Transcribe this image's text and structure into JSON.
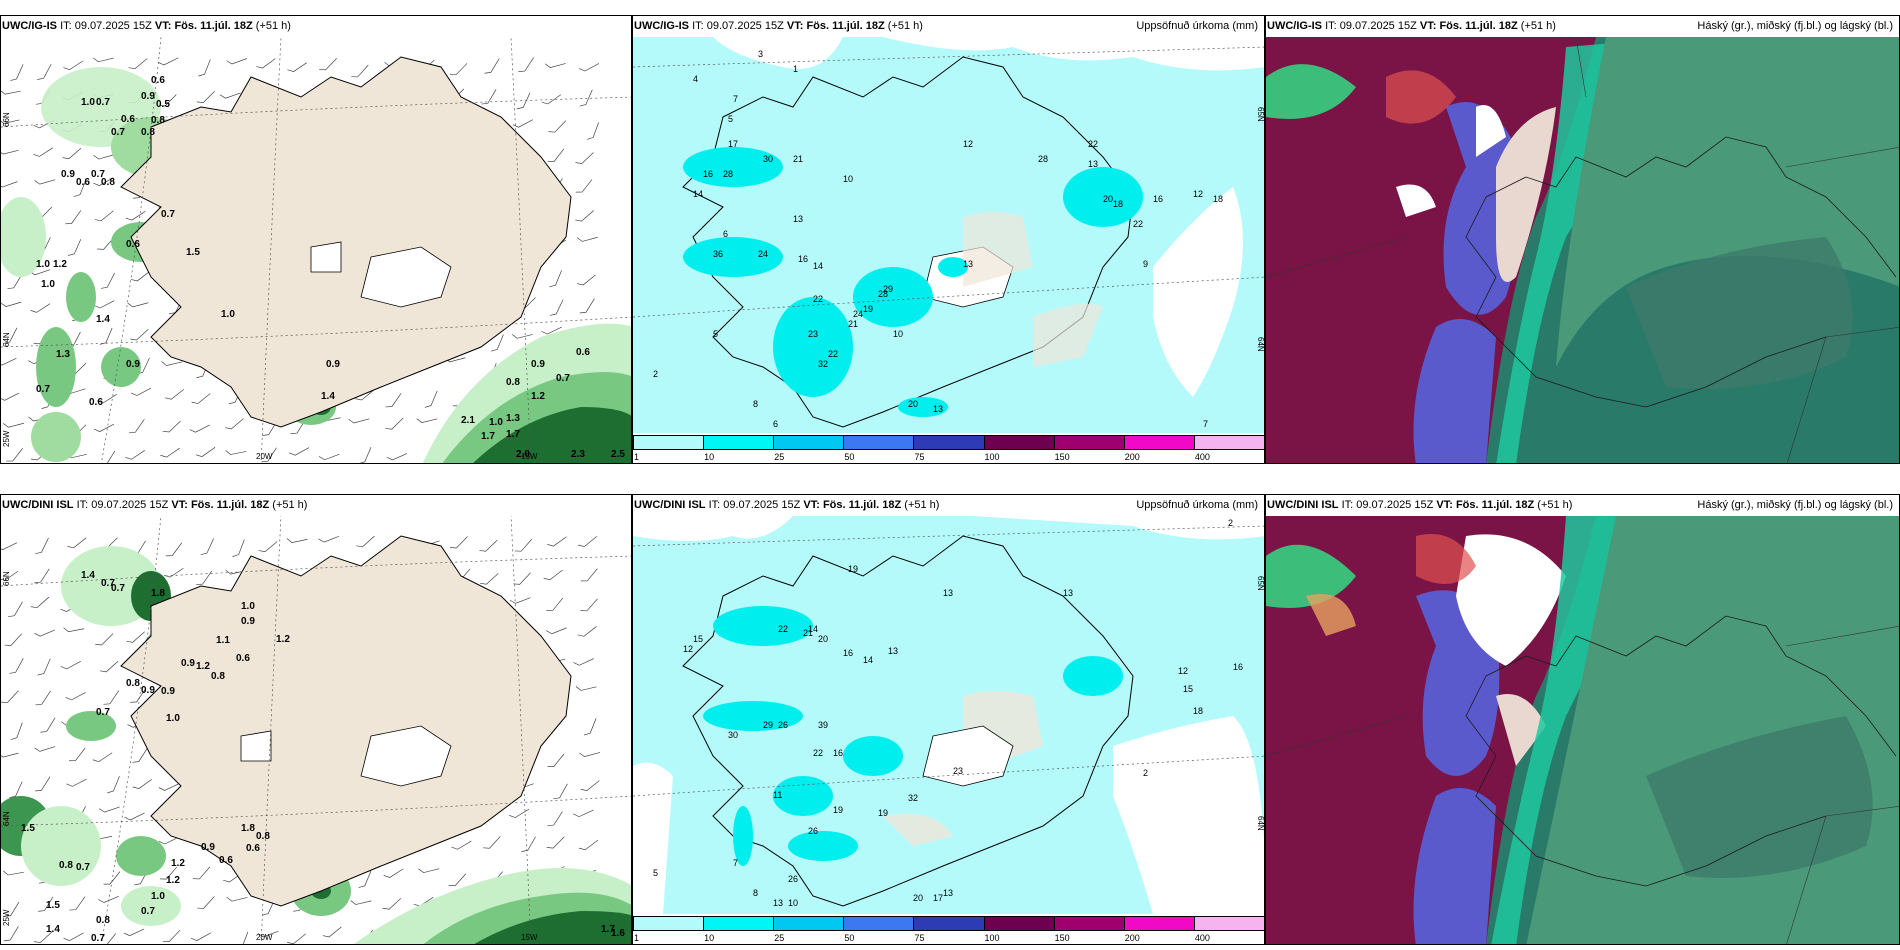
{
  "rows": [
    {
      "model": "UWC/IG-IS",
      "it_prefix": "IT:",
      "it_value": "09.07.2025 15Z",
      "vt_label": "VT:",
      "vt_value": "Fös. 11.júl. 18Z",
      "lead": "(+51 h)",
      "panel_mid_title": "Uppsöfnuð úrkoma (mm)",
      "panel_right_title": "Háský (gr.), miðský (fj.bl.) og lágský (bl.)",
      "lat_labels": [
        "66N",
        "64N",
        "25W"
      ],
      "lon_labels": [
        "20W",
        "15W"
      ],
      "mid_lat_labels": [
        "65N",
        "64N"
      ],
      "left_values": [
        "1.0",
        "0.7",
        "0.6",
        "0.9",
        "0.5",
        "0.6",
        "0.8",
        "0.7",
        "0.8",
        "0.7",
        "0.6",
        "0.9",
        "0.8",
        "0.7",
        "0.6",
        "1.0",
        "1.2",
        "1.5",
        "1.0",
        "1.4",
        "1.3",
        "0.9",
        "0.7",
        "0.6",
        "1.0",
        "0.9",
        "1.4",
        "1.0",
        "0.8",
        "1.2",
        "0.9",
        "0.7",
        "1.3",
        "2.1",
        "1.7",
        "2.0",
        "1.7",
        "2.3",
        "2.5",
        "0.6"
      ],
      "mid_values": [
        "3",
        "1",
        "4",
        "7",
        "5",
        "17",
        "30",
        "21",
        "16",
        "28",
        "14",
        "10",
        "13",
        "6",
        "36",
        "24",
        "16",
        "14",
        "22",
        "24",
        "28",
        "29",
        "19",
        "23",
        "21",
        "22",
        "32",
        "10",
        "12",
        "13",
        "22",
        "28",
        "13",
        "20",
        "18",
        "16",
        "12",
        "18",
        "22",
        "20",
        "13",
        "9",
        "7",
        "2",
        "5",
        "8",
        "6"
      ]
    },
    {
      "model": "UWC/DINI ISL",
      "it_prefix": "IT:",
      "it_value": "09.07.2025 15Z",
      "vt_label": "VT:",
      "vt_value": "Fös. 11.júl. 18Z",
      "lead": "(+51 h)",
      "panel_mid_title": "Uppsöfnuð úrkoma (mm)",
      "panel_right_title": "Háský (gr.), miðský (fj.bl.) og lágský (bl.)",
      "lat_labels": [
        "66N",
        "64N",
        "25W"
      ],
      "lon_labels": [
        "20W",
        "15W"
      ],
      "mid_lat_labels": [
        "65N",
        "64N"
      ],
      "left_values": [
        "1.4",
        "0.7",
        "0.7",
        "1.8",
        "1.0",
        "0.9",
        "1.1",
        "1.2",
        "0.6",
        "0.9",
        "1.2",
        "0.8",
        "0.8",
        "0.9",
        "0.9",
        "0.7",
        "1.0",
        "1.8",
        "0.8",
        "0.6",
        "0.9",
        "0.6",
        "0.8",
        "0.7",
        "1.5",
        "1.4",
        "0.8",
        "0.7",
        "1.2",
        "1.5",
        "1.2",
        "1.0",
        "0.7",
        "1.6",
        "1.7"
      ],
      "mid_values": [
        "2",
        "19",
        "14",
        "12",
        "15",
        "22",
        "21",
        "20",
        "16",
        "14",
        "13",
        "30",
        "29",
        "26",
        "39",
        "22",
        "16",
        "11",
        "26",
        "19",
        "19",
        "32",
        "23",
        "13",
        "13",
        "16",
        "15",
        "18",
        "12",
        "26",
        "10",
        "13",
        "20",
        "17",
        "13",
        "2",
        "5",
        "7",
        "8"
      ]
    }
  ],
  "colorbar": {
    "ticks": [
      "1",
      "10",
      "25",
      "50",
      "75",
      "100",
      "150",
      "200",
      "400"
    ],
    "colors": [
      "#b4fafa",
      "#00f5f5",
      "#00c8f0",
      "#3c78f0",
      "#2d3cb4",
      "#6e0050",
      "#a0006e",
      "#f00ac8",
      "#f5b4f0"
    ]
  },
  "colors": {
    "land": "#f0e6d8",
    "precip_light": "#b4fafa",
    "precip_mid": "#00eeee",
    "green_light": "#c8f0c8",
    "green_mid": "#78c882",
    "green_dark": "#1e6e32",
    "cloud_high": "#7a1446",
    "cloud_mid": "#5a5acc",
    "cloud_low": "#2a7a6a"
  }
}
